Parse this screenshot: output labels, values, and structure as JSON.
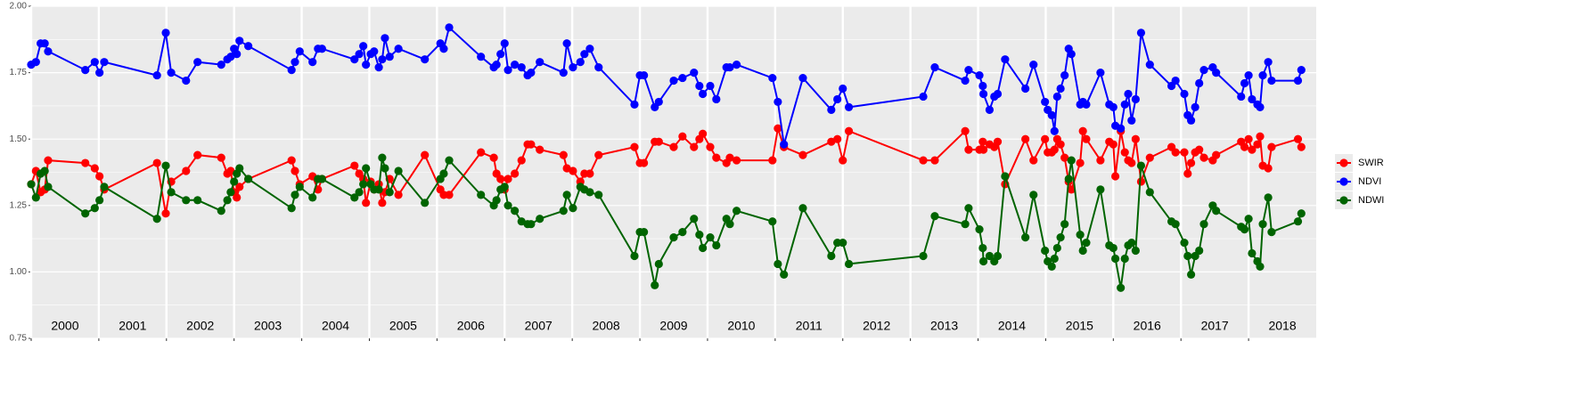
{
  "chart_data": {
    "type": "line",
    "x": [
      2000.0,
      2000.07,
      2000.14,
      2000.2,
      2000.25,
      2000.8,
      2000.94,
      2001.01,
      2001.08,
      2001.86,
      2001.99,
      2002.07,
      2002.29,
      2002.46,
      2002.81,
      2002.9,
      2002.95,
      2003.0,
      2003.04,
      2003.08,
      2003.21,
      2003.85,
      2003.9,
      2003.97,
      2004.16,
      2004.24,
      2004.3,
      2004.78,
      2004.85,
      2004.91,
      2004.95,
      2005.02,
      2005.07,
      2005.14,
      2005.19,
      2005.23,
      2005.3,
      2005.43,
      2005.82,
      2006.05,
      2006.1,
      2006.18,
      2006.65,
      2006.84,
      2006.88,
      2006.94,
      2007.0,
      2007.05,
      2007.15,
      2007.25,
      2007.34,
      2007.39,
      2007.52,
      2007.87,
      2007.92,
      2008.01,
      2008.12,
      2008.18,
      2008.26,
      2008.39,
      2008.92,
      2009.0,
      2009.06,
      2009.22,
      2009.28,
      2009.5,
      2009.63,
      2009.8,
      2009.88,
      2009.93,
      2010.04,
      2010.13,
      2010.28,
      2010.33,
      2010.43,
      2010.96,
      2011.04,
      2011.13,
      2011.41,
      2011.83,
      2011.92,
      2012.0,
      2012.09,
      2013.19,
      2013.36,
      2013.81,
      2013.86,
      2014.02,
      2014.07,
      2014.08,
      2014.17,
      2014.24,
      2014.29,
      2014.4,
      2014.7,
      2014.82,
      2014.99,
      2015.03,
      2015.09,
      2015.13,
      2015.17,
      2015.22,
      2015.28,
      2015.34,
      2015.38,
      2015.51,
      2015.55,
      2015.6,
      2015.81,
      2015.94,
      2016.0,
      2016.03,
      2016.11,
      2016.17,
      2016.22,
      2016.27,
      2016.33,
      2016.41,
      2016.54,
      2016.86,
      2016.92,
      2017.05,
      2017.1,
      2017.15,
      2017.21,
      2017.27,
      2017.34,
      2017.47,
      2017.52,
      2017.89,
      2017.94,
      2018.0,
      2018.05,
      2018.13,
      2018.17,
      2018.21,
      2018.29,
      2018.34,
      2018.73,
      2018.78
    ],
    "series": [
      {
        "name": "SWIR",
        "color": "#ff0000",
        "values": [
          1.33,
          1.38,
          1.3,
          1.31,
          1.42,
          1.41,
          1.39,
          1.36,
          1.31,
          1.41,
          1.22,
          1.34,
          1.38,
          1.44,
          1.43,
          1.37,
          1.38,
          1.3,
          1.28,
          1.32,
          1.35,
          1.42,
          1.38,
          1.33,
          1.36,
          1.31,
          1.35,
          1.4,
          1.37,
          1.35,
          1.26,
          1.34,
          1.31,
          1.33,
          1.26,
          1.3,
          1.35,
          1.29,
          1.44,
          1.31,
          1.29,
          1.29,
          1.45,
          1.43,
          1.37,
          1.35,
          1.31,
          1.35,
          1.37,
          1.42,
          1.48,
          1.48,
          1.46,
          1.44,
          1.39,
          1.38,
          1.34,
          1.37,
          1.37,
          1.44,
          1.47,
          1.41,
          1.41,
          1.49,
          1.49,
          1.47,
          1.51,
          1.47,
          1.5,
          1.52,
          1.47,
          1.43,
          1.41,
          1.43,
          1.42,
          1.42,
          1.54,
          1.47,
          1.44,
          1.49,
          1.5,
          1.42,
          1.53,
          1.42,
          1.42,
          1.53,
          1.46,
          1.46,
          1.49,
          1.46,
          1.48,
          1.47,
          1.49,
          1.33,
          1.5,
          1.42,
          1.5,
          1.45,
          1.45,
          1.46,
          1.5,
          1.48,
          1.43,
          1.34,
          1.31,
          1.41,
          1.53,
          1.5,
          1.42,
          1.49,
          1.48,
          1.36,
          1.53,
          1.45,
          1.42,
          1.41,
          1.5,
          1.34,
          1.43,
          1.47,
          1.45,
          1.45,
          1.37,
          1.41,
          1.45,
          1.46,
          1.43,
          1.42,
          1.44,
          1.49,
          1.47,
          1.5,
          1.46,
          1.48,
          1.51,
          1.4,
          1.39,
          1.47,
          1.5,
          1.47
        ]
      },
      {
        "name": "NDVI",
        "color": "#0000ff",
        "values": [
          1.78,
          1.79,
          1.86,
          1.86,
          1.83,
          1.76,
          1.79,
          1.75,
          1.79,
          1.74,
          1.9,
          1.75,
          1.72,
          1.79,
          1.78,
          1.8,
          1.81,
          1.84,
          1.82,
          1.87,
          1.85,
          1.76,
          1.79,
          1.83,
          1.79,
          1.84,
          1.84,
          1.8,
          1.82,
          1.85,
          1.78,
          1.82,
          1.83,
          1.77,
          1.8,
          1.88,
          1.81,
          1.84,
          1.8,
          1.86,
          1.84,
          1.92,
          1.81,
          1.77,
          1.78,
          1.82,
          1.86,
          1.76,
          1.78,
          1.77,
          1.74,
          1.75,
          1.79,
          1.75,
          1.86,
          1.77,
          1.79,
          1.82,
          1.84,
          1.77,
          1.63,
          1.74,
          1.74,
          1.62,
          1.64,
          1.72,
          1.73,
          1.75,
          1.7,
          1.67,
          1.7,
          1.65,
          1.77,
          1.77,
          1.78,
          1.73,
          1.64,
          1.48,
          1.73,
          1.61,
          1.65,
          1.69,
          1.62,
          1.66,
          1.77,
          1.72,
          1.76,
          1.74,
          1.7,
          1.67,
          1.61,
          1.66,
          1.67,
          1.8,
          1.69,
          1.78,
          1.64,
          1.61,
          1.59,
          1.53,
          1.66,
          1.69,
          1.74,
          1.84,
          1.82,
          1.63,
          1.64,
          1.63,
          1.75,
          1.63,
          1.62,
          1.55,
          1.54,
          1.63,
          1.67,
          1.57,
          1.65,
          1.9,
          1.78,
          1.7,
          1.72,
          1.67,
          1.59,
          1.57,
          1.62,
          1.71,
          1.76,
          1.77,
          1.75,
          1.66,
          1.71,
          1.74,
          1.65,
          1.63,
          1.62,
          1.74,
          1.79,
          1.72,
          1.72,
          1.76
        ]
      },
      {
        "name": "NDWI",
        "color": "#006400",
        "values": [
          1.33,
          1.28,
          1.37,
          1.38,
          1.32,
          1.22,
          1.24,
          1.27,
          1.32,
          1.2,
          1.4,
          1.3,
          1.27,
          1.27,
          1.23,
          1.27,
          1.3,
          1.34,
          1.37,
          1.39,
          1.35,
          1.24,
          1.29,
          1.32,
          1.28,
          1.35,
          1.35,
          1.28,
          1.3,
          1.33,
          1.39,
          1.33,
          1.31,
          1.31,
          1.43,
          1.39,
          1.3,
          1.38,
          1.26,
          1.35,
          1.37,
          1.42,
          1.29,
          1.25,
          1.27,
          1.31,
          1.32,
          1.25,
          1.23,
          1.19,
          1.18,
          1.18,
          1.2,
          1.23,
          1.29,
          1.24,
          1.32,
          1.31,
          1.3,
          1.29,
          1.06,
          1.15,
          1.15,
          0.95,
          1.03,
          1.13,
          1.15,
          1.2,
          1.14,
          1.09,
          1.13,
          1.1,
          1.2,
          1.18,
          1.23,
          1.19,
          1.03,
          0.99,
          1.24,
          1.06,
          1.11,
          1.11,
          1.03,
          1.06,
          1.21,
          1.18,
          1.24,
          1.16,
          1.09,
          1.04,
          1.06,
          1.04,
          1.06,
          1.36,
          1.13,
          1.29,
          1.08,
          1.04,
          1.02,
          1.05,
          1.09,
          1.13,
          1.18,
          1.35,
          1.42,
          1.14,
          1.08,
          1.11,
          1.31,
          1.1,
          1.09,
          1.05,
          0.94,
          1.05,
          1.1,
          1.11,
          1.08,
          1.4,
          1.3,
          1.19,
          1.18,
          1.11,
          1.06,
          0.99,
          1.06,
          1.08,
          1.18,
          1.25,
          1.23,
          1.17,
          1.16,
          1.2,
          1.07,
          1.04,
          1.02,
          1.18,
          1.28,
          1.15,
          1.19,
          1.22
        ]
      }
    ],
    "xlim": [
      2000,
      2019
    ],
    "xticks": [
      {
        "value": 2000,
        "label": "2000"
      },
      {
        "value": 2001,
        "label": "2001"
      },
      {
        "value": 2002,
        "label": "2002"
      },
      {
        "value": 2003,
        "label": "2003"
      },
      {
        "value": 2004,
        "label": "2004"
      },
      {
        "value": 2005,
        "label": "2005"
      },
      {
        "value": 2006,
        "label": "2006"
      },
      {
        "value": 2007,
        "label": "2007"
      },
      {
        "value": 2008,
        "label": "2008"
      },
      {
        "value": 2009,
        "label": "2009"
      },
      {
        "value": 2010,
        "label": "2010"
      },
      {
        "value": 2011,
        "label": "2011"
      },
      {
        "value": 2012,
        "label": "2012"
      },
      {
        "value": 2013,
        "label": "2013"
      },
      {
        "value": 2014,
        "label": "2014"
      },
      {
        "value": 2015,
        "label": "2015"
      },
      {
        "value": 2016,
        "label": "2016"
      },
      {
        "value": 2017,
        "label": "2017"
      },
      {
        "value": 2018,
        "label": "2018"
      }
    ],
    "ylim": [
      0.75,
      2.0
    ],
    "yticks": [
      {
        "value": 0.75,
        "label": "0.75"
      },
      {
        "value": 1.0,
        "label": "1.00"
      },
      {
        "value": 1.25,
        "label": "1.25"
      },
      {
        "value": 1.5,
        "label": "1.50"
      },
      {
        "value": 1.75,
        "label": "1.75"
      },
      {
        "value": 2.0,
        "label": "2.00"
      }
    ],
    "grid": true,
    "minor_grid": true,
    "legend": "right"
  }
}
